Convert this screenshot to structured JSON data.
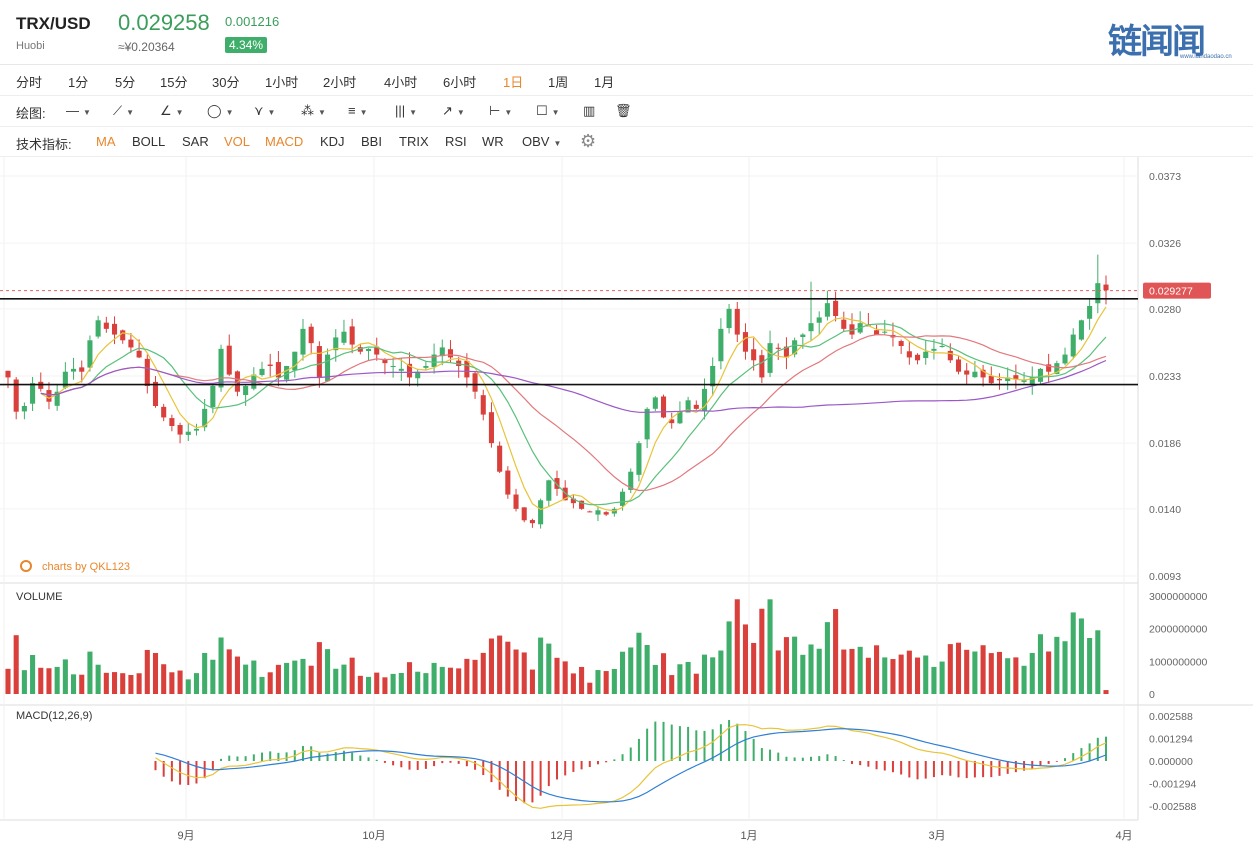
{
  "header": {
    "symbol": "TRX/USD",
    "exchange": "Huobi",
    "price": "0.029258",
    "change": "0.001216",
    "cny_price": "≈¥0.20364",
    "change_pct": "4.34%",
    "logo_text": "链闻闻",
    "logo_sub": "www.liandaodao.cn"
  },
  "intervals": [
    "分时",
    "1分",
    "5分",
    "15分",
    "30分",
    "1小时",
    "2小时",
    "4小时",
    "6小时",
    "1日",
    "1周",
    "1月"
  ],
  "active_interval": "1日",
  "drawing": {
    "label": "绘图:",
    "tools": [
      "line-tool-icon",
      "pen-tool-icon",
      "angle-tool-icon",
      "circle-tool-icon",
      "zigzag-tool-icon",
      "pattern-tool-icon",
      "fib-tool-icon",
      "gann-tool-icon",
      "arrow-tool-icon",
      "measure-tool-icon",
      "comment-tool-icon",
      "bar-pattern-icon",
      "trash-icon"
    ]
  },
  "indicators": {
    "label": "技术指标:",
    "items": [
      "MA",
      "BOLL",
      "SAR",
      "VOL",
      "MACD",
      "KDJ",
      "BBI",
      "TRIX",
      "RSI",
      "WR",
      "OBV"
    ],
    "active": [
      "MA",
      "VOL",
      "MACD"
    ]
  },
  "watermark": "charts by QKL123",
  "colors": {
    "up": "#3fae6a",
    "down": "#d9403c",
    "ma5": "#e8c43a",
    "ma10": "#59c07a",
    "ma20": "#e2787c",
    "ma60": "#9b59c7",
    "accent": "#e8862c",
    "dif": "#e8c43a",
    "dea": "#2f7fd6"
  },
  "chart_data": [
    {
      "type": "candlestick",
      "title": "TRX/USD",
      "y_ticks": [
        "0.0373",
        "0.0326",
        "0.0280",
        "0.0233",
        "0.0186",
        "0.0140",
        "0.0093"
      ],
      "ylim": [
        0.0093,
        0.0373
      ],
      "x_ticks": [
        "9月",
        "10月",
        "12月",
        "1月",
        "3月",
        "4月"
      ],
      "current_price_label": "0.029277",
      "current_price": 0.029277,
      "horizontal_lines": [
        0.0287,
        0.0227
      ],
      "series_names": [
        "MA5",
        "MA10",
        "MA20",
        "MA60"
      ],
      "close": [
        0.0232,
        0.0208,
        0.0212,
        0.0228,
        0.0224,
        0.0215,
        0.0222,
        0.0236,
        0.0238,
        0.0236,
        0.0258,
        0.0272,
        0.0266,
        0.0262,
        0.0258,
        0.0253,
        0.0246,
        0.0226,
        0.0212,
        0.0204,
        0.0198,
        0.0192,
        0.0194,
        0.0196,
        0.021,
        0.0226,
        0.0252,
        0.0234,
        0.0222,
        0.0226,
        0.0234,
        0.0238,
        0.024,
        0.0232,
        0.024,
        0.025,
        0.0266,
        0.0256,
        0.0232,
        0.0248,
        0.026,
        0.0264,
        0.0255,
        0.025,
        0.0252,
        0.0248,
        0.0242,
        0.024,
        0.0238,
        0.0232,
        0.0236,
        0.024,
        0.0248,
        0.0253,
        0.0246,
        0.024,
        0.0232,
        0.0222,
        0.0206,
        0.0186,
        0.0166,
        0.015,
        0.014,
        0.0132,
        0.013,
        0.0146,
        0.016,
        0.0154,
        0.0146,
        0.0144,
        0.014,
        0.0138,
        0.0139,
        0.0136,
        0.014,
        0.0152,
        0.0166,
        0.0186,
        0.021,
        0.0218,
        0.0204,
        0.02,
        0.0208,
        0.0216,
        0.021,
        0.0224,
        0.024,
        0.0266,
        0.028,
        0.0262,
        0.025,
        0.0244,
        0.0232,
        0.0256,
        0.0252,
        0.0246,
        0.0258,
        0.0262,
        0.027,
        0.0274,
        0.0284,
        0.0275,
        0.0266,
        0.0262,
        0.027,
        0.0268,
        0.0262,
        0.0264,
        0.026,
        0.0254,
        0.0246,
        0.0244,
        0.025,
        0.0252,
        0.0254,
        0.0244,
        0.0236,
        0.0234,
        0.0236,
        0.0232,
        0.0228,
        0.023,
        0.0232,
        0.0231,
        0.023,
        0.0232,
        0.0238,
        0.0236,
        0.0242,
        0.0248,
        0.0262,
        0.0272,
        0.0282,
        0.0298,
        0.0293
      ],
      "macd_label": "MACD(12,26,9)",
      "macd_ticks": [
        "0.002588",
        "0.001294",
        "0.000000",
        "-0.001294",
        "-0.002588"
      ],
      "macd_ylim": [
        -0.002588,
        0.002588
      ]
    },
    {
      "type": "bar",
      "title": "VOLUME",
      "y_ticks": [
        "3000000000",
        "2000000000",
        "1000000000",
        "0"
      ],
      "ylim": [
        0,
        3000000000
      ]
    }
  ]
}
